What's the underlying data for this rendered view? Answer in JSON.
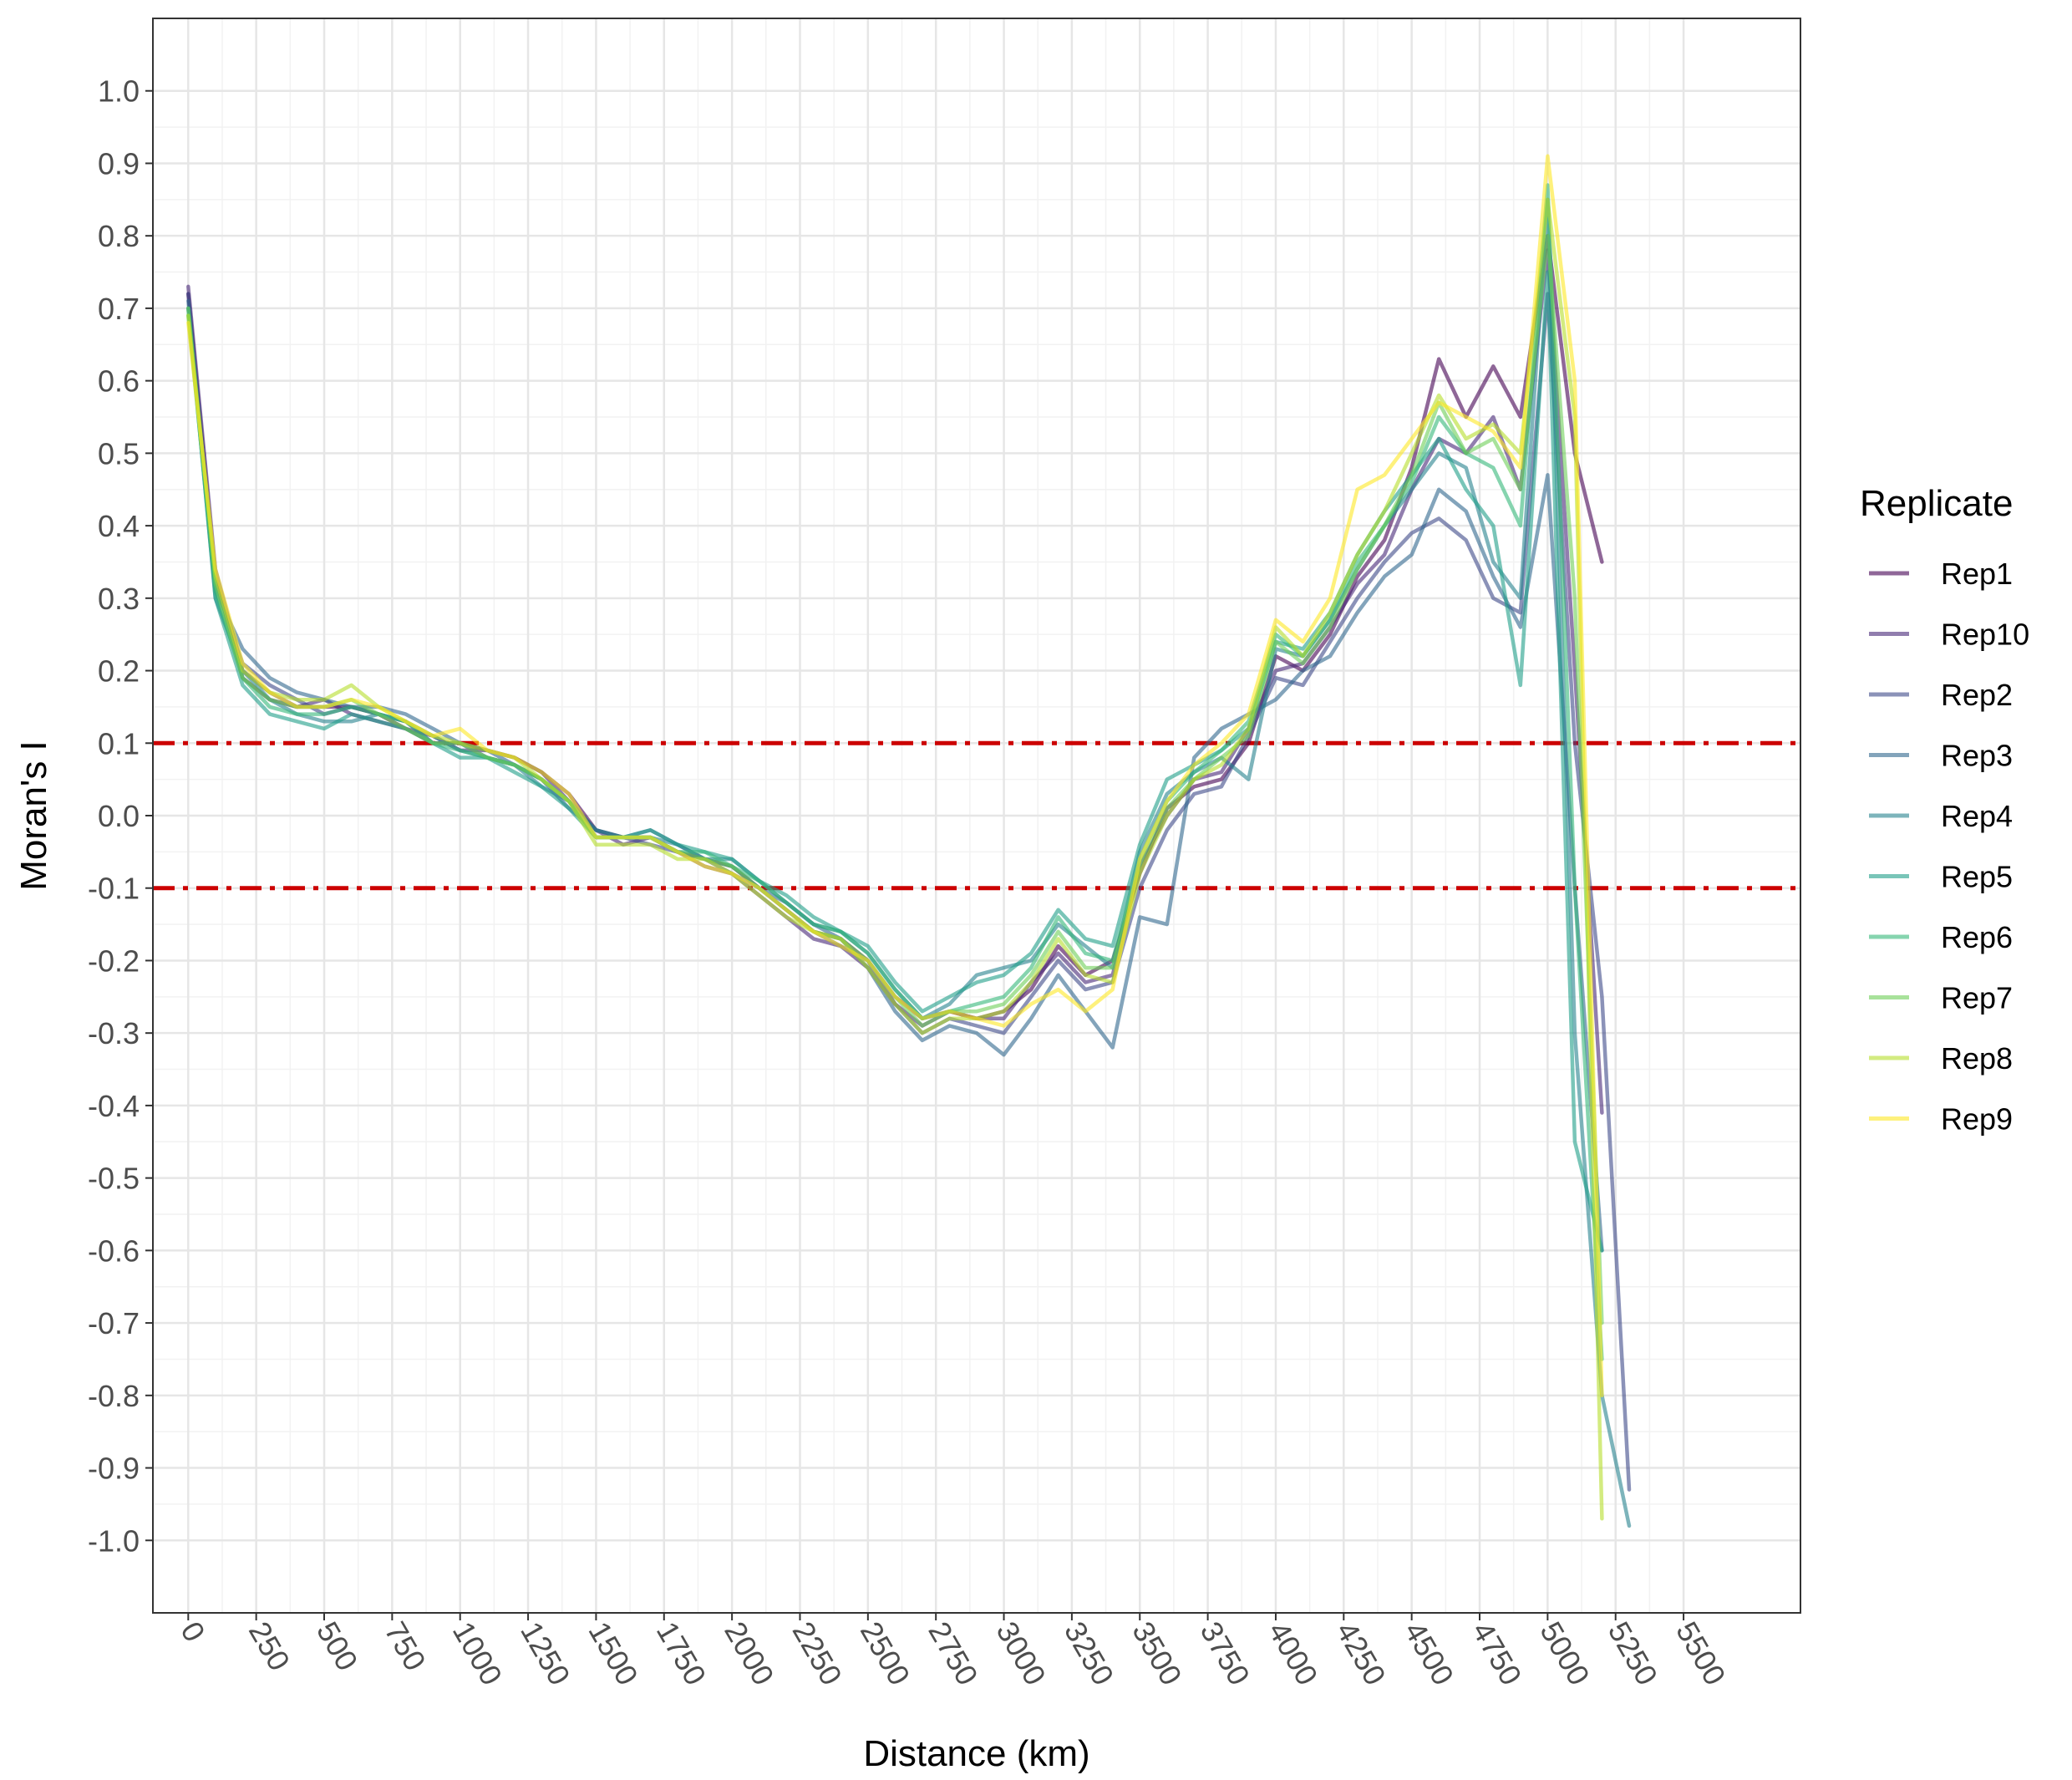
{
  "chart_data": {
    "type": "line",
    "title": "",
    "xlabel": "Distance (km)",
    "ylabel": "Moran's I",
    "xlim": [
      -130,
      5930
    ],
    "ylim": [
      -1.1,
      1.1
    ],
    "x_ticks": [
      0,
      250,
      500,
      750,
      1000,
      1250,
      1500,
      1750,
      2000,
      2250,
      2500,
      2750,
      3000,
      3250,
      3500,
      3750,
      4000,
      4250,
      4500,
      4750,
      5000,
      5250,
      5500
    ],
    "x_tick_labels": [
      "0",
      "250",
      "500",
      "750",
      "1000",
      "1250",
      "1500",
      "1750",
      "2000",
      "2250",
      "2500",
      "2750",
      "3000",
      "3250",
      "3500",
      "3750",
      "4000",
      "4250",
      "4500",
      "4750",
      "5000",
      "5250",
      "5500"
    ],
    "y_ticks": [
      1.0,
      0.9,
      0.8,
      0.7,
      0.6,
      0.5,
      0.4,
      0.3,
      0.2,
      0.1,
      0.0,
      -0.1,
      -0.2,
      -0.3,
      -0.4,
      -0.5,
      -0.6,
      -0.7,
      -0.8,
      -0.9,
      -1.0
    ],
    "y_tick_labels": [
      "1.0",
      "0.9",
      "0.8",
      "0.7",
      "0.6",
      "0.5",
      "0.4",
      "0.3",
      "0.2",
      "0.1",
      "0.0",
      "-0.1",
      "-0.2",
      "-0.3",
      "-0.4",
      "-0.5",
      "-0.6",
      "-0.7",
      "-0.8",
      "-0.9",
      "-1.0"
    ],
    "grid": true,
    "legend": {
      "title": "Replicate",
      "placement": "right"
    },
    "reference_lines": [
      {
        "y": 0.1,
        "color": "#cc0000",
        "style": "dash-dot"
      },
      {
        "y": -0.1,
        "color": "#cc0000",
        "style": "dash-dot"
      }
    ],
    "x": [
      0,
      100,
      200,
      300,
      400,
      500,
      600,
      700,
      800,
      900,
      1000,
      1100,
      1200,
      1300,
      1400,
      1500,
      1600,
      1700,
      1800,
      1900,
      2000,
      2100,
      2200,
      2300,
      2400,
      2500,
      2600,
      2700,
      2800,
      2900,
      3000,
      3100,
      3200,
      3300,
      3400,
      3500,
      3600,
      3700,
      3800,
      3900,
      4000,
      4100,
      4200,
      4300,
      4400,
      4500,
      4600,
      4700,
      4800,
      4900,
      5000,
      5100,
      5200,
      5300
    ],
    "series": [
      {
        "name": "Rep1",
        "color": "#440154",
        "values": [
          0.72,
          0.33,
          0.19,
          0.16,
          0.15,
          0.15,
          0.15,
          0.14,
          0.12,
          0.1,
          0.1,
          0.09,
          0.08,
          0.06,
          0.03,
          -0.02,
          -0.03,
          -0.03,
          -0.05,
          -0.06,
          -0.07,
          -0.1,
          -0.13,
          -0.16,
          -0.17,
          -0.2,
          -0.25,
          -0.28,
          -0.27,
          -0.28,
          -0.27,
          -0.24,
          -0.18,
          -0.22,
          -0.2,
          -0.08,
          0.01,
          0.04,
          0.05,
          0.1,
          0.22,
          0.2,
          0.25,
          0.33,
          0.38,
          0.48,
          0.63,
          0.55,
          0.62,
          0.55,
          0.8,
          0.5,
          0.35,
          null
        ]
      },
      {
        "name": "Rep10",
        "color": "#482878",
        "values": [
          0.73,
          0.34,
          0.2,
          0.17,
          0.15,
          0.16,
          0.14,
          0.13,
          0.12,
          0.11,
          0.09,
          0.09,
          0.08,
          0.06,
          0.02,
          -0.02,
          -0.04,
          -0.03,
          -0.05,
          -0.07,
          -0.08,
          -0.11,
          -0.14,
          -0.17,
          -0.18,
          -0.21,
          -0.26,
          -0.29,
          -0.27,
          -0.28,
          -0.28,
          -0.23,
          -0.19,
          -0.23,
          -0.22,
          -0.07,
          0.0,
          0.05,
          0.06,
          0.12,
          0.2,
          0.21,
          0.26,
          0.32,
          0.36,
          0.45,
          0.52,
          0.5,
          0.55,
          0.45,
          0.78,
          0.2,
          -0.41,
          null
        ]
      },
      {
        "name": "Rep2",
        "color": "#3e4a89",
        "values": [
          0.72,
          0.32,
          0.21,
          0.18,
          0.16,
          0.14,
          0.15,
          0.14,
          0.13,
          0.1,
          0.1,
          0.08,
          0.07,
          0.05,
          0.02,
          -0.03,
          -0.03,
          -0.04,
          -0.05,
          -0.06,
          -0.08,
          -0.1,
          -0.13,
          -0.16,
          -0.18,
          -0.2,
          -0.26,
          -0.3,
          -0.28,
          -0.29,
          -0.3,
          -0.25,
          -0.2,
          -0.24,
          -0.23,
          -0.1,
          -0.02,
          0.03,
          0.04,
          0.11,
          0.19,
          0.18,
          0.24,
          0.3,
          0.35,
          0.39,
          0.41,
          0.38,
          0.3,
          0.28,
          0.72,
          0.1,
          -0.25,
          -0.93
        ]
      },
      {
        "name": "Rep3",
        "color": "#31688e",
        "values": [
          0.71,
          0.31,
          0.23,
          0.19,
          0.17,
          0.16,
          0.15,
          0.15,
          0.14,
          0.12,
          0.1,
          0.09,
          0.07,
          0.05,
          0.01,
          -0.02,
          -0.03,
          -0.02,
          -0.04,
          -0.06,
          -0.07,
          -0.1,
          -0.12,
          -0.15,
          -0.17,
          -0.21,
          -0.27,
          -0.31,
          -0.29,
          -0.3,
          -0.33,
          -0.28,
          -0.22,
          -0.27,
          -0.32,
          -0.14,
          -0.15,
          0.08,
          0.12,
          0.14,
          0.16,
          0.2,
          0.22,
          0.28,
          0.33,
          0.36,
          0.45,
          0.42,
          0.33,
          0.26,
          0.47,
          -0.1,
          -0.6,
          null
        ]
      },
      {
        "name": "Rep4",
        "color": "#26828e",
        "values": [
          0.7,
          0.3,
          0.2,
          0.16,
          0.14,
          0.13,
          0.13,
          0.14,
          0.13,
          0.11,
          0.09,
          0.08,
          0.07,
          0.04,
          0.02,
          -0.02,
          -0.03,
          -0.03,
          -0.04,
          -0.06,
          -0.06,
          -0.09,
          -0.12,
          -0.15,
          -0.16,
          -0.19,
          -0.24,
          -0.28,
          -0.26,
          -0.22,
          -0.21,
          -0.2,
          -0.15,
          -0.18,
          -0.21,
          -0.05,
          0.03,
          0.06,
          0.08,
          0.05,
          0.23,
          0.22,
          0.27,
          0.34,
          0.4,
          0.45,
          0.5,
          0.48,
          0.35,
          0.3,
          0.85,
          -0.3,
          -0.8,
          -0.98
        ]
      },
      {
        "name": "Rep5",
        "color": "#1f9e89",
        "values": [
          0.7,
          0.3,
          0.18,
          0.14,
          0.13,
          0.12,
          0.14,
          0.13,
          0.12,
          0.1,
          0.08,
          0.08,
          0.06,
          0.04,
          0.01,
          -0.03,
          -0.03,
          -0.02,
          -0.04,
          -0.05,
          -0.06,
          -0.09,
          -0.11,
          -0.14,
          -0.16,
          -0.18,
          -0.23,
          -0.27,
          -0.25,
          -0.23,
          -0.22,
          -0.19,
          -0.13,
          -0.17,
          -0.18,
          -0.04,
          0.05,
          0.07,
          0.09,
          0.12,
          0.24,
          0.23,
          0.28,
          0.36,
          0.42,
          0.47,
          0.52,
          0.45,
          0.4,
          0.18,
          0.75,
          -0.45,
          -0.6,
          null
        ]
      },
      {
        "name": "Rep6",
        "color": "#35b779",
        "values": [
          0.69,
          0.31,
          0.19,
          0.15,
          0.14,
          0.14,
          0.15,
          0.14,
          0.13,
          0.1,
          0.09,
          0.08,
          0.07,
          0.05,
          0.02,
          -0.03,
          -0.03,
          -0.03,
          -0.05,
          -0.05,
          -0.07,
          -0.09,
          -0.12,
          -0.15,
          -0.16,
          -0.19,
          -0.24,
          -0.28,
          -0.27,
          -0.26,
          -0.25,
          -0.21,
          -0.14,
          -0.19,
          -0.2,
          -0.06,
          0.02,
          0.06,
          0.09,
          0.13,
          0.25,
          0.22,
          0.27,
          0.35,
          0.4,
          0.46,
          0.55,
          0.5,
          0.48,
          0.4,
          0.87,
          -0.1,
          -0.75,
          null
        ]
      },
      {
        "name": "Rep7",
        "color": "#6ece58",
        "values": [
          0.7,
          0.32,
          0.19,
          0.16,
          0.15,
          0.15,
          0.16,
          0.14,
          0.12,
          0.1,
          0.1,
          0.08,
          0.07,
          0.05,
          0.02,
          -0.03,
          -0.03,
          -0.03,
          -0.05,
          -0.06,
          -0.07,
          -0.1,
          -0.13,
          -0.16,
          -0.17,
          -0.2,
          -0.25,
          -0.29,
          -0.27,
          -0.27,
          -0.26,
          -0.22,
          -0.16,
          -0.21,
          -0.21,
          -0.07,
          0.01,
          0.05,
          0.08,
          0.11,
          0.24,
          0.21,
          0.26,
          0.34,
          0.4,
          0.47,
          0.57,
          0.5,
          0.52,
          0.45,
          0.8,
          0.3,
          -0.7,
          null
        ]
      },
      {
        "name": "Rep8",
        "color": "#b5de2b",
        "values": [
          0.69,
          0.33,
          0.2,
          0.17,
          0.16,
          0.16,
          0.18,
          0.15,
          0.13,
          0.11,
          0.1,
          0.09,
          0.08,
          0.05,
          0.02,
          -0.04,
          -0.04,
          -0.04,
          -0.06,
          -0.06,
          -0.08,
          -0.11,
          -0.14,
          -0.16,
          -0.17,
          -0.21,
          -0.26,
          -0.3,
          -0.28,
          -0.28,
          -0.27,
          -0.23,
          -0.17,
          -0.22,
          -0.23,
          -0.08,
          0.0,
          0.05,
          0.07,
          0.12,
          0.26,
          0.22,
          0.28,
          0.36,
          0.42,
          0.5,
          0.58,
          0.52,
          0.54,
          0.5,
          0.85,
          0.55,
          -0.97,
          null
        ]
      },
      {
        "name": "Rep9",
        "color": "#fde725",
        "values": [
          0.68,
          0.34,
          0.21,
          0.17,
          0.15,
          0.15,
          0.16,
          0.15,
          0.13,
          0.11,
          0.12,
          0.09,
          0.08,
          0.06,
          0.03,
          -0.03,
          -0.03,
          -0.03,
          -0.05,
          -0.07,
          -0.08,
          -0.1,
          -0.13,
          -0.16,
          -0.18,
          -0.2,
          -0.25,
          -0.28,
          -0.27,
          -0.28,
          -0.29,
          -0.26,
          -0.24,
          -0.27,
          -0.24,
          -0.06,
          0.02,
          0.07,
          0.1,
          0.14,
          0.27,
          0.24,
          0.3,
          0.45,
          0.47,
          0.52,
          0.57,
          0.55,
          0.53,
          0.48,
          0.91,
          0.6,
          -0.8,
          null
        ]
      }
    ]
  }
}
